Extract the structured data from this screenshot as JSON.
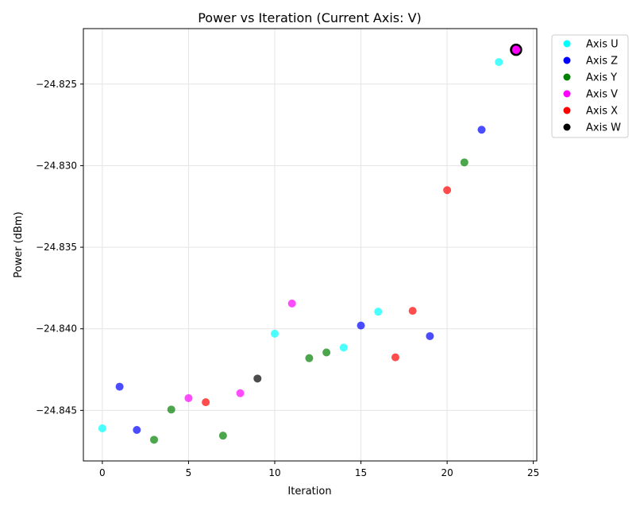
{
  "chart_data": {
    "type": "scatter",
    "title": "Power vs Iteration (Current Axis: V)",
    "xlabel": "Iteration",
    "ylabel": "Power (dBm)",
    "xlim": [
      -1.1,
      25.2
    ],
    "ylim": [
      -24.8481,
      -24.8216
    ],
    "xticks": [
      0,
      5,
      10,
      15,
      20,
      25
    ],
    "xtick_labels": [
      "0",
      "5",
      "10",
      "15",
      "20",
      "25"
    ],
    "yticks": [
      -24.845,
      -24.84,
      -24.835,
      -24.83,
      -24.825
    ],
    "ytick_labels": [
      "−24.845",
      "−24.840",
      "−24.835",
      "−24.830",
      "−24.825"
    ],
    "grid": true,
    "legend_position": "outside-top-right",
    "series": [
      {
        "name": "Axis U",
        "color": "#00ffff",
        "points": [
          {
            "x": 0,
            "y": -24.8461
          },
          {
            "x": 10,
            "y": -24.8403
          },
          {
            "x": 14,
            "y": -24.84115
          },
          {
            "x": 16,
            "y": -24.83895
          },
          {
            "x": 23,
            "y": -24.82365
          }
        ]
      },
      {
        "name": "Axis Z",
        "color": "#0000ff",
        "points": [
          {
            "x": 1,
            "y": -24.84355
          },
          {
            "x": 2,
            "y": -24.8462
          },
          {
            "x": 15,
            "y": -24.8398
          },
          {
            "x": 19,
            "y": -24.84045
          },
          {
            "x": 22,
            "y": -24.8278
          }
        ]
      },
      {
        "name": "Axis Y",
        "color": "#008000",
        "points": [
          {
            "x": 3,
            "y": -24.8468
          },
          {
            "x": 4,
            "y": -24.84495
          },
          {
            "x": 7,
            "y": -24.84655
          },
          {
            "x": 12,
            "y": -24.8418
          },
          {
            "x": 13,
            "y": -24.84145
          },
          {
            "x": 21,
            "y": -24.8298
          }
        ]
      },
      {
        "name": "Axis V",
        "color": "#ff00ff",
        "points": [
          {
            "x": 5,
            "y": -24.84425
          },
          {
            "x": 8,
            "y": -24.84395
          },
          {
            "x": 11,
            "y": -24.83845
          }
        ]
      },
      {
        "name": "Axis X",
        "color": "#ff0000",
        "points": [
          {
            "x": 6,
            "y": -24.8445
          },
          {
            "x": 17,
            "y": -24.84175
          },
          {
            "x": 18,
            "y": -24.8389
          },
          {
            "x": 20,
            "y": -24.8315
          }
        ]
      },
      {
        "name": "Axis W",
        "color": "#000000",
        "points": [
          {
            "x": 9,
            "y": -24.84305
          }
        ]
      }
    ],
    "current_point": {
      "x": 24,
      "y": -24.8229,
      "fill": "#ff00ff",
      "edge": "#000000"
    }
  }
}
